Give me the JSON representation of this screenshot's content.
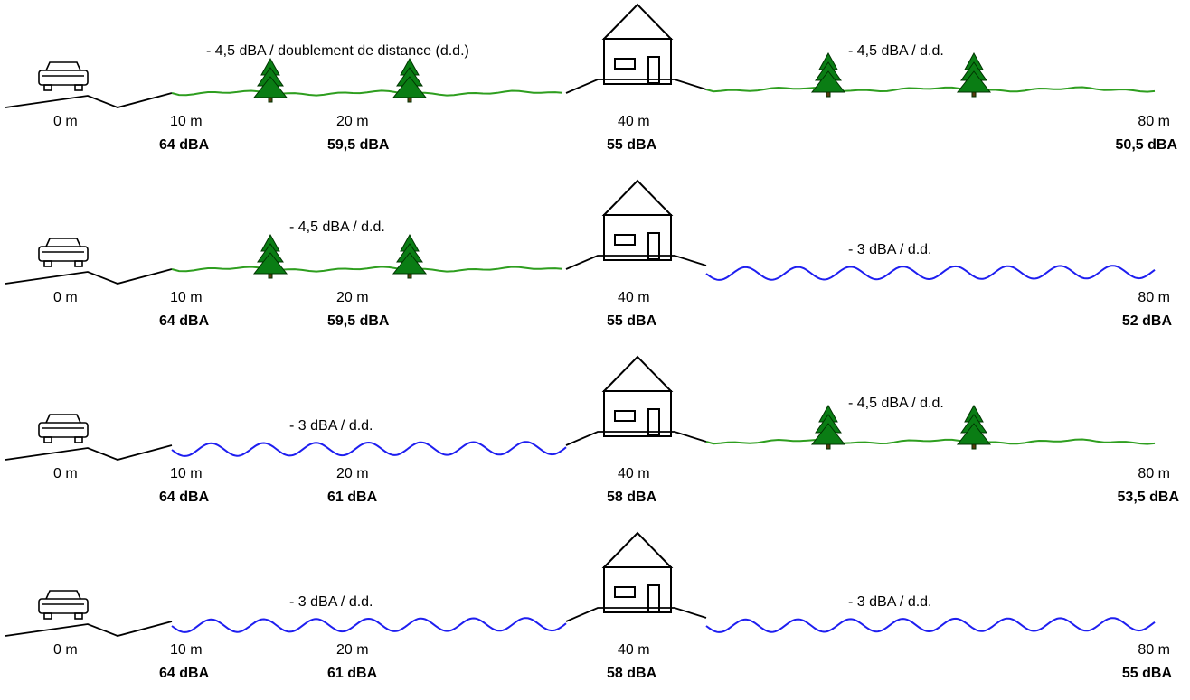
{
  "scenarios": [
    {
      "left_rate": "- 4,5 dBA / doublement de distance (d.d.)",
      "left_surface": "grass",
      "right_rate": "- 4,5 dBA / d.d.",
      "right_surface": "grass",
      "distances": [
        "0 m",
        "10 m",
        "20 m",
        "40 m",
        "80 m"
      ],
      "levels": [
        "64 dBA",
        "59,5 dBA",
        "55 dBA",
        "50,5 dBA"
      ]
    },
    {
      "left_rate": "- 4,5 dBA / d.d.",
      "left_surface": "grass",
      "right_rate": "- 3 dBA / d.d.",
      "right_surface": "water",
      "distances": [
        "0 m",
        "10 m",
        "20 m",
        "40 m",
        "80 m"
      ],
      "levels": [
        "64 dBA",
        "59,5 dBA",
        "55 dBA",
        "52 dBA"
      ]
    },
    {
      "left_rate": "- 3 dBA / d.d.",
      "left_surface": "water",
      "right_rate": "- 4,5 dBA / d.d.",
      "right_surface": "grass",
      "distances": [
        "0 m",
        "10 m",
        "20 m",
        "40 m",
        "80 m"
      ],
      "levels": [
        "64 dBA",
        "61 dBA",
        "58 dBA",
        "53,5 dBA"
      ]
    },
    {
      "left_rate": "- 3 dBA / d.d.",
      "left_surface": "water",
      "right_rate": "- 3 dBA / d.d.",
      "right_surface": "water",
      "distances": [
        "0 m",
        "10 m",
        "20 m",
        "40 m",
        "80 m"
      ],
      "levels": [
        "64 dBA",
        "61 dBA",
        "58 dBA",
        "55 dBA"
      ]
    }
  ],
  "colors": {
    "grass": "#2e9e1f",
    "water": "#1e1ef0",
    "tree": "#0a7d14",
    "ground": "#000000"
  },
  "icons": [
    "car-icon",
    "house-icon",
    "tree-icon"
  ]
}
